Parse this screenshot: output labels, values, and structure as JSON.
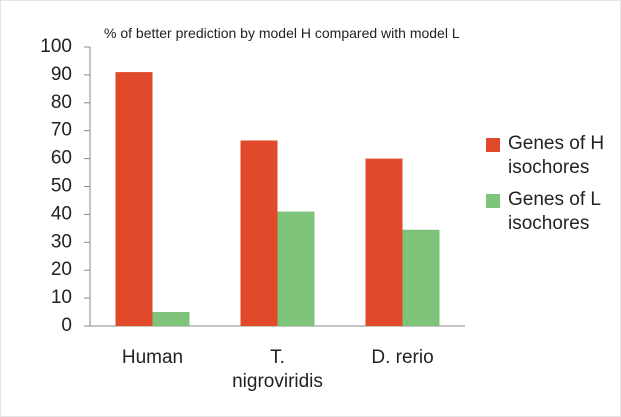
{
  "chart_data": {
    "type": "bar",
    "title": "% of better prediction by model H compared with model L",
    "categories": [
      "Human",
      "T. nigroviridis",
      "D. rerio"
    ],
    "series": [
      {
        "name": "Genes of H isochores",
        "color": "#e04a2a",
        "values": [
          91,
          66.5,
          60
        ]
      },
      {
        "name": "Genes of L isochores",
        "color": "#7dc47a",
        "values": [
          5,
          41,
          34.5
        ]
      }
    ],
    "ylim": [
      0,
      100
    ],
    "yticks": [
      0,
      10,
      20,
      30,
      40,
      50,
      60,
      70,
      80,
      90,
      100
    ],
    "grid": false,
    "legend": "right"
  }
}
